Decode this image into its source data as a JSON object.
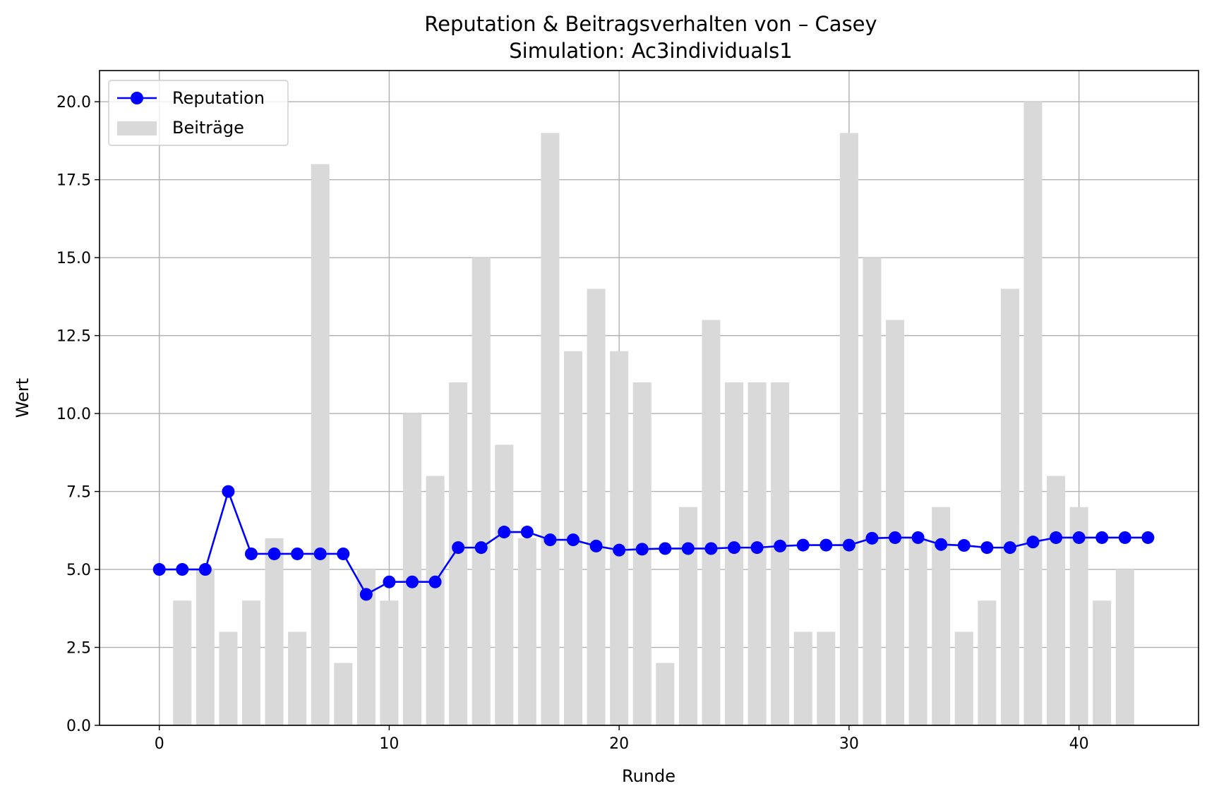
{
  "chart_data": {
    "type": "bar+line",
    "title": "Reputation & Beitragsverhalten von – Casey",
    "subtitle": "Simulation: Ac3individuals1",
    "xlabel": "Runde",
    "ylabel": "Wert",
    "xlim": [
      -2.6,
      45.2
    ],
    "ylim": [
      0,
      21
    ],
    "xticks": [
      0,
      10,
      20,
      30,
      40
    ],
    "yticks": [
      0.0,
      2.5,
      5.0,
      7.5,
      10.0,
      12.5,
      15.0,
      17.5,
      20.0
    ],
    "xtick_labels": [
      "0",
      "10",
      "20",
      "30",
      "40"
    ],
    "ytick_labels": [
      "0.0",
      "2.5",
      "5.0",
      "7.5",
      "10.0",
      "12.5",
      "15.0",
      "17.5",
      "20.0"
    ],
    "grid": true,
    "legend_position": "top-left",
    "series": [
      {
        "name": "Reputation",
        "kind": "line",
        "color": "#0000ff",
        "x": [
          0,
          1,
          2,
          3,
          4,
          5,
          6,
          7,
          8,
          9,
          10,
          11,
          12,
          13,
          14,
          15,
          16,
          17,
          18,
          19,
          20,
          21,
          22,
          23,
          24,
          25,
          26,
          27,
          28,
          29,
          30,
          31,
          32,
          33,
          34,
          35,
          36,
          37,
          38,
          39,
          40,
          41,
          42,
          43
        ],
        "values": [
          5.0,
          5.0,
          5.0,
          7.5,
          5.5,
          5.5,
          5.5,
          5.5,
          5.5,
          4.2,
          4.6,
          4.6,
          4.6,
          5.7,
          5.7,
          6.2,
          6.2,
          5.95,
          5.95,
          5.75,
          5.62,
          5.65,
          5.67,
          5.67,
          5.67,
          5.7,
          5.7,
          5.75,
          5.78,
          5.78,
          5.78,
          6.0,
          6.02,
          6.02,
          5.8,
          5.77,
          5.7,
          5.7,
          5.88,
          6.02,
          6.02,
          6.02,
          6.02,
          6.02
        ]
      },
      {
        "name": "Beiträge",
        "kind": "bar",
        "color": "#d9d9d9",
        "x": [
          1,
          2,
          3,
          4,
          5,
          6,
          7,
          8,
          9,
          10,
          11,
          12,
          13,
          14,
          15,
          16,
          17,
          18,
          19,
          20,
          21,
          22,
          23,
          24,
          25,
          26,
          27,
          28,
          29,
          30,
          31,
          32,
          33,
          34,
          35,
          36,
          37,
          38,
          39,
          40,
          41,
          42
        ],
        "values": [
          4,
          5,
          3,
          4,
          6,
          3,
          18,
          2,
          5,
          4,
          10,
          8,
          11,
          15,
          9,
          6,
          19,
          12,
          14,
          12,
          11,
          2,
          7,
          13,
          11,
          11,
          11,
          3,
          3,
          19,
          15,
          13,
          6,
          7,
          3,
          4,
          14,
          20,
          8,
          7,
          4,
          5
        ]
      }
    ]
  }
}
